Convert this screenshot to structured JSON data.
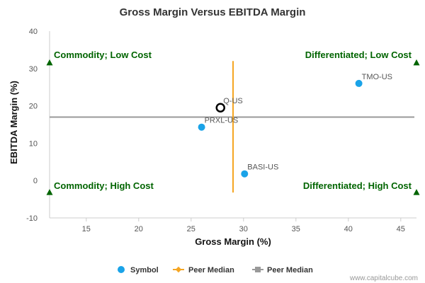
{
  "chart_data": {
    "type": "scatter",
    "title": "Gross Margin Versus EBITDA Margin",
    "xlabel": "Gross Margin (%)",
    "ylabel": "EBITDA Margin (%)",
    "xlim": [
      11.5,
      46.5
    ],
    "ylim": [
      -10,
      40
    ],
    "x_ticks": [
      15,
      20,
      25,
      30,
      35,
      40,
      45
    ],
    "y_ticks": [
      -10,
      0,
      10,
      20,
      30,
      40
    ],
    "points": [
      {
        "symbol": "TMO-US",
        "x": 41.0,
        "y": 26.0,
        "highlight": false
      },
      {
        "symbol": "Q-US",
        "x": 27.8,
        "y": 19.5,
        "highlight": true
      },
      {
        "symbol": "PRXL-US",
        "x": 26.0,
        "y": 14.3,
        "highlight": false
      },
      {
        "symbol": "BASI-US",
        "x": 30.1,
        "y": 1.8,
        "highlight": false
      }
    ],
    "peer_median_x": 29.0,
    "peer_median_x_range": [
      -3.2,
      32
    ],
    "peer_median_y": 17.0,
    "quadrant_markers": [
      {
        "x": 11.5,
        "y": 31.5
      },
      {
        "x": 46.5,
        "y": 31.5
      },
      {
        "x": 11.5,
        "y": -3.2
      },
      {
        "x": 46.5,
        "y": -3.2
      }
    ],
    "quadrant_labels": {
      "top_left": "Commodity; Low Cost",
      "top_right": "Differentiated; Low Cost",
      "bottom_left": "Commodity; High Cost",
      "bottom_right": "Differentiated; High Cost"
    },
    "legend": [
      {
        "label": "Symbol",
        "kind": "dot"
      },
      {
        "label": "Peer Median",
        "kind": "vline"
      },
      {
        "label": "Peer Median",
        "kind": "hline"
      }
    ]
  },
  "colors": {
    "point": "#1aa3e8",
    "highlight_stroke": "#000000",
    "median_vertical": "#f5a623",
    "median_horizontal": "#999999",
    "quadrant": "#006400",
    "axis": "#cccccc"
  },
  "credit": "www.capitalcube.com"
}
